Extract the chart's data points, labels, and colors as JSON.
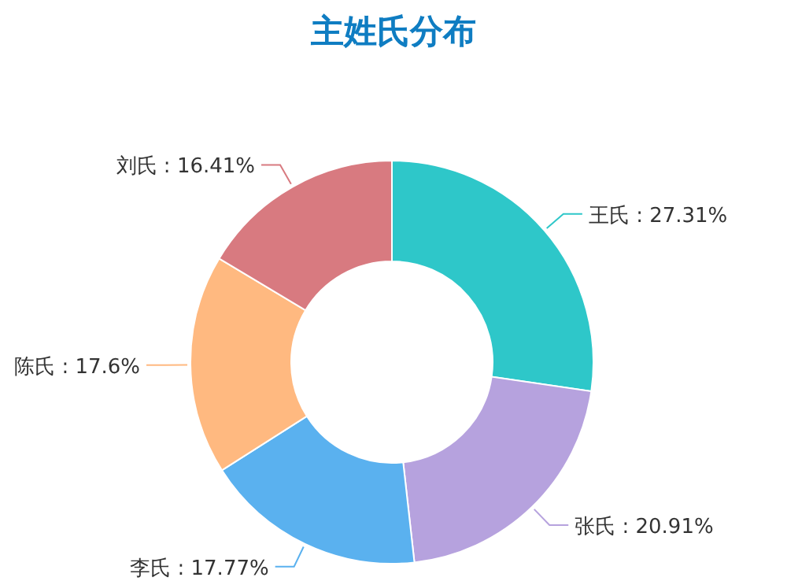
{
  "chart_data": {
    "type": "donut",
    "title": "主姓氏分布",
    "categories": [
      "王氏",
      "张氏",
      "李氏",
      "陈氏",
      "刘氏"
    ],
    "values": [
      27.31,
      20.91,
      17.77,
      17.6,
      16.41
    ],
    "colors": [
      "#2ec7c9",
      "#b6a2de",
      "#5ab1ef",
      "#ffb980",
      "#d87a80"
    ],
    "value_labels": [
      "27.31%",
      "20.91%",
      "17.77%",
      "17.6%",
      "16.41%"
    ],
    "data_labels": true
  }
}
